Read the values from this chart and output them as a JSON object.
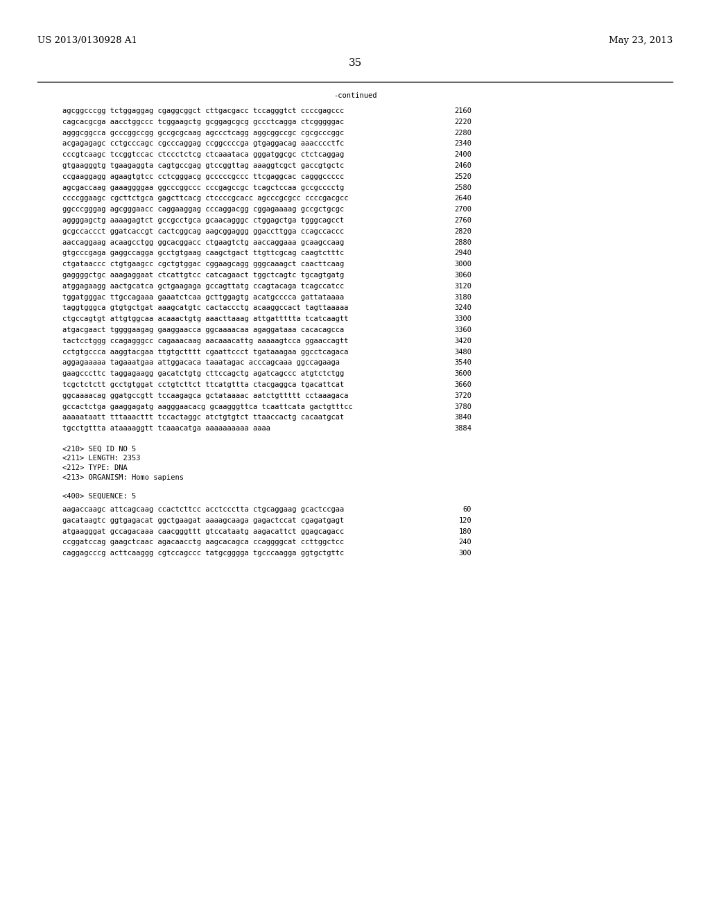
{
  "header_left": "US 2013/0130928 A1",
  "header_right": "May 23, 2013",
  "page_number": "35",
  "continued_label": "-continued",
  "background_color": "#ffffff",
  "text_color": "#000000",
  "font_size": 7.5,
  "header_font_size": 9.5,
  "page_num_font_size": 11,
  "sequence_lines": [
    [
      "agcggcccgg tctggaggag cgaggcggct cttgacgacc tccagggtct ccccgagccc",
      "2160"
    ],
    [
      "cagcacgcga aacctggccc tcggaagctg gcggagcgcg gccctcagga ctcgggggac",
      "2220"
    ],
    [
      "agggcggcca gcccggccgg gccgcgcaag agccctcagg aggcggccgc cgcgcccggc",
      "2280"
    ],
    [
      "acgagagagc cctgcccagc cgcccaggag ccggccccga gtgaggacag aaacccctfc",
      "2340"
    ],
    [
      "cccgtcaagc tccggtccac ctccctctcg ctcaaataca gggatggcgc ctctcaggag",
      "2400"
    ],
    [
      "gtgaagggtg tgaagaggta cagtgccgag gtccggttag aaaggtcgct gaccgtgctc",
      "2460"
    ],
    [
      "ccgaaggagg agaagtgtcc cctcgggacg gcccccgccc ttcgaggcac cagggccccc",
      "2520"
    ],
    [
      "agcgaccaag gaaaggggaa ggcccggccc cccgagccgc tcagctccaa gccgcccctg",
      "2580"
    ],
    [
      "ccccggaagc cgcttctgca gagcttcacg ctccccgcacc agcccgcgcc ccccgacgcc",
      "2640"
    ],
    [
      "ggcccgggag agcgggaacc caggaaggag cccaggacgg cggagaaaag gccgctgcgc",
      "2700"
    ],
    [
      "aggggagctg aaaagagtct gccgcctgca gcaacagggc ctggagctga tgggcagcct",
      "2760"
    ],
    [
      "gcgccaccct ggatcaccgt cactcggcag aagcggaggg ggaccttgga ccagccaccc",
      "2820"
    ],
    [
      "aaccaggaag acaagcctgg ggcacggacc ctgaagtctg aaccaggaaa gcaagccaag",
      "2880"
    ],
    [
      "gtgcccgaga gaggccagga gcctgtgaag caagctgact ttgttcgcag caagtctttc",
      "2940"
    ],
    [
      "ctgataaccc ctgtgaagcc cgctgtggac cggaagcagg gggcaaagct caacttcaag",
      "3000"
    ],
    [
      "gaggggctgc aaagaggaat ctcattgtcc catcagaact tggctcagtc tgcagtgatg",
      "3060"
    ],
    [
      "atggagaagg aactgcatca gctgaagaga gccagttatg ccagtacaga tcagccatcc",
      "3120"
    ],
    [
      "tggatgggac ttgccagaaa gaaatctcaa gcttggagtg acatgcccca gattataaaa",
      "3180"
    ],
    [
      "taggtgggca gtgtgctgat aaagcatgtc cactaccctg acaaggccact tagttaaaaa",
      "3240"
    ],
    [
      "ctgccagtgt attgtggcaa acaaactgtg aaacttaaag attgattttta tcatcaagtt",
      "3300"
    ],
    [
      "atgacgaact tggggaagag gaaggaacca ggcaaaacaa agaggataaa cacacagcca",
      "3360"
    ],
    [
      "tactcctggg ccagagggcc cagaaacaag aacaaacattg aaaaagtcca ggaaccagtt",
      "3420"
    ],
    [
      "cctgtgccca aaggtacgaa ttgtgctttt cgaattccct tgataaagaa ggcctcagaca",
      "3480"
    ],
    [
      "aggagaaaaa tagaaatgaa attggacaca taaatagac acccagcaaa ggccagaaga",
      "3540"
    ],
    [
      "gaagcccttc taggagaagg gacatctgtg cttccagctg agatcagccc atgtctctgg",
      "3600"
    ],
    [
      "tcgctctctt gcctgtggat cctgtcttct ttcatgttta ctacgaggca tgacattcat",
      "3660"
    ],
    [
      "ggcaaaacag ggatgccgtt tccaagagca gctataaaac aatctgttttt cctaaagaca",
      "3720"
    ],
    [
      "gccactctga gaaggagatg aagggaacacg gcaagggttca tcaattcata gactgtttcc",
      "3780"
    ],
    [
      "aaaaataatt tttaaacttt tccactaggc atctgtgtct ttaaccactg cacaatgcat",
      "3840"
    ],
    [
      "tgcctgttta ataaaaggtt tcaaacatga aaaaaaaaaa aaaa",
      "3884"
    ]
  ],
  "annotation_lines": [
    "<210> SEQ ID NO 5",
    "<211> LENGTH: 2353",
    "<212> TYPE: DNA",
    "<213> ORGANISM: Homo sapiens",
    "",
    "<400> SEQUENCE: 5"
  ],
  "seq5_lines": [
    [
      "aagaccaagc attcagcaag ccactcttcc acctccctta ctgcaggaag gcactccgaa",
      "60"
    ],
    [
      "gacataagtc ggtgagacat ggctgaagat aaaagcaaga gagactccat cgagatgagt",
      "120"
    ],
    [
      "atgaagggat gccagacaaa caacgggttt gtccataatg aagacattct ggagcagacc",
      "180"
    ],
    [
      "ccggatccag gaagctcaac agacaacctg aagcacagca ccaggggcat ccttggctcc",
      "240"
    ],
    [
      "caggagcccg acttcaaggg cgtccagccc tatgcgggga tgcccaagga ggtgctgttc",
      "300"
    ]
  ]
}
